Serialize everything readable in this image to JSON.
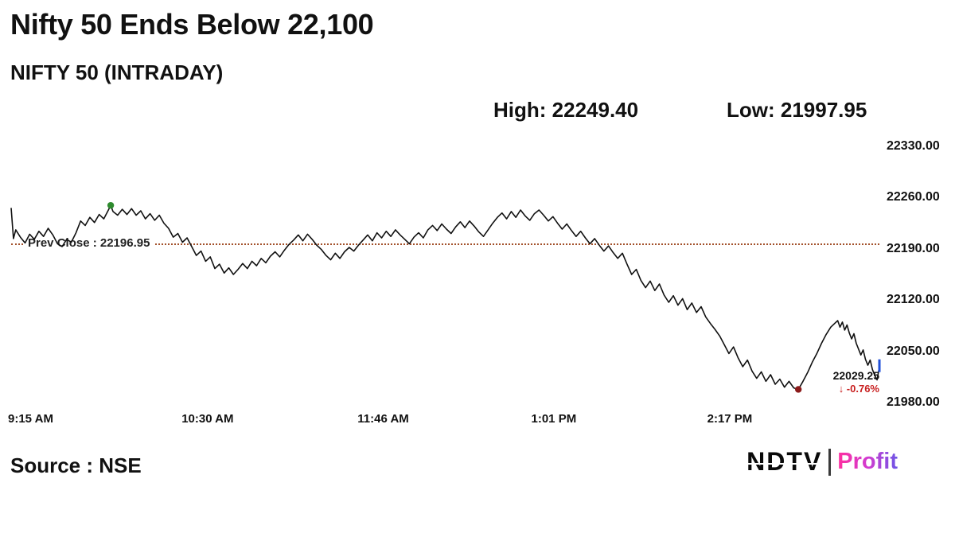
{
  "header": {
    "title": "Nifty 50 Ends Below 22,100",
    "subtitle": "NIFTY 50 (INTRADAY)",
    "high_label": "High: 22249.40",
    "low_label": "Low: 21997.95"
  },
  "footer": {
    "source": "Source : NSE",
    "logo": {
      "ndtv": "NDTV",
      "divider": "|",
      "profit": "Profit"
    }
  },
  "colors": {
    "line": "#111111",
    "prev_close": "#a3512b",
    "green": "#2e8b2e",
    "dark_red": "#8b1a1a",
    "blue": "#1f4fd8",
    "change_red": "#c81e1e",
    "profit_gradient": [
      "#ff2f9e",
      "#d23bd0",
      "#6d55e6"
    ]
  },
  "chart_data": {
    "type": "line",
    "title": "NIFTY 50 (INTRADAY)",
    "xlabel": "",
    "ylabel": "",
    "grid": false,
    "high": 22249.4,
    "low": 21997.95,
    "prev_close": {
      "label": "Prev Close : 22196.95",
      "value": 22196.95
    },
    "last": {
      "value": 22029.25,
      "label": "22029.25",
      "change_label": "↓ -0.76%",
      "change_pct": -0.76
    },
    "x_axis": {
      "labels": [
        "9:15 AM",
        "10:30 AM",
        "11:46 AM",
        "1:01 PM",
        "2:17 PM"
      ],
      "tick_minutes": [
        0,
        75,
        151,
        226,
        302
      ],
      "range_minutes": [
        0,
        375
      ]
    },
    "y_axis": {
      "labels": [
        "22330.00",
        "22260.00",
        "22190.00",
        "22120.00",
        "22050.00",
        "21980.00"
      ],
      "ticks": [
        22330,
        22260,
        22190,
        22120,
        22050,
        21980
      ],
      "range": [
        21980,
        22330
      ]
    },
    "markers": [
      {
        "type": "dot",
        "color_key": "green",
        "minute": 43,
        "value": 22249.4,
        "name": "day-high-marker"
      },
      {
        "type": "dot",
        "color_key": "dark_red",
        "minute": 340,
        "value": 21997.95,
        "name": "day-low-marker"
      },
      {
        "type": "tick",
        "color_key": "blue",
        "minute": 375,
        "value": 22029.25,
        "name": "last-price-marker"
      }
    ],
    "series": [
      {
        "name": "NIFTY 50",
        "points": [
          [
            0,
            22246
          ],
          [
            1,
            22204
          ],
          [
            2,
            22216
          ],
          [
            4,
            22206
          ],
          [
            6,
            22198
          ],
          [
            8,
            22210
          ],
          [
            10,
            22203
          ],
          [
            12,
            22214
          ],
          [
            14,
            22207
          ],
          [
            16,
            22218
          ],
          [
            18,
            22209
          ],
          [
            20,
            22197
          ],
          [
            22,
            22193
          ],
          [
            24,
            22203
          ],
          [
            26,
            22199
          ],
          [
            28,
            22212
          ],
          [
            30,
            22228
          ],
          [
            32,
            22222
          ],
          [
            34,
            22233
          ],
          [
            36,
            22226
          ],
          [
            38,
            22237
          ],
          [
            40,
            22231
          ],
          [
            42,
            22243
          ],
          [
            43,
            22249.4
          ],
          [
            44,
            22241
          ],
          [
            46,
            22236
          ],
          [
            48,
            22244
          ],
          [
            50,
            22237
          ],
          [
            52,
            22245
          ],
          [
            54,
            22236
          ],
          [
            56,
            22242
          ],
          [
            58,
            22231
          ],
          [
            60,
            22238
          ],
          [
            62,
            22229
          ],
          [
            64,
            22236
          ],
          [
            66,
            22225
          ],
          [
            68,
            22218
          ],
          [
            70,
            22206
          ],
          [
            72,
            22211
          ],
          [
            74,
            22199
          ],
          [
            76,
            22205
          ],
          [
            78,
            22193
          ],
          [
            80,
            22181
          ],
          [
            82,
            22187
          ],
          [
            84,
            22173
          ],
          [
            86,
            22179
          ],
          [
            88,
            22163
          ],
          [
            90,
            22169
          ],
          [
            92,
            22157
          ],
          [
            94,
            22164
          ],
          [
            96,
            22155
          ],
          [
            98,
            22162
          ],
          [
            100,
            22170
          ],
          [
            102,
            22163
          ],
          [
            104,
            22173
          ],
          [
            106,
            22167
          ],
          [
            108,
            22177
          ],
          [
            110,
            22171
          ],
          [
            112,
            22180
          ],
          [
            114,
            22186
          ],
          [
            116,
            22179
          ],
          [
            118,
            22188
          ],
          [
            120,
            22196
          ],
          [
            122,
            22202
          ],
          [
            124,
            22209
          ],
          [
            126,
            22201
          ],
          [
            128,
            22210
          ],
          [
            130,
            22203
          ],
          [
            132,
            22195
          ],
          [
            134,
            22189
          ],
          [
            136,
            22181
          ],
          [
            138,
            22175
          ],
          [
            140,
            22184
          ],
          [
            142,
            22177
          ],
          [
            144,
            22186
          ],
          [
            146,
            22192
          ],
          [
            148,
            22187
          ],
          [
            150,
            22195
          ],
          [
            152,
            22202
          ],
          [
            154,
            22209
          ],
          [
            156,
            22201
          ],
          [
            158,
            22212
          ],
          [
            160,
            22205
          ],
          [
            162,
            22214
          ],
          [
            164,
            22207
          ],
          [
            166,
            22216
          ],
          [
            168,
            22209
          ],
          [
            170,
            22203
          ],
          [
            172,
            22197
          ],
          [
            174,
            22206
          ],
          [
            176,
            22212
          ],
          [
            178,
            22205
          ],
          [
            180,
            22216
          ],
          [
            182,
            22222
          ],
          [
            184,
            22215
          ],
          [
            186,
            22224
          ],
          [
            188,
            22217
          ],
          [
            190,
            22211
          ],
          [
            192,
            22220
          ],
          [
            194,
            22227
          ],
          [
            196,
            22219
          ],
          [
            198,
            22228
          ],
          [
            200,
            22221
          ],
          [
            202,
            22213
          ],
          [
            204,
            22207
          ],
          [
            206,
            22216
          ],
          [
            208,
            22225
          ],
          [
            210,
            22233
          ],
          [
            212,
            22239
          ],
          [
            214,
            22231
          ],
          [
            216,
            22241
          ],
          [
            218,
            22233
          ],
          [
            220,
            22243
          ],
          [
            222,
            22235
          ],
          [
            224,
            22229
          ],
          [
            226,
            22238
          ],
          [
            228,
            22243
          ],
          [
            230,
            22236
          ],
          [
            232,
            22228
          ],
          [
            234,
            22234
          ],
          [
            236,
            22225
          ],
          [
            238,
            22217
          ],
          [
            240,
            22224
          ],
          [
            242,
            22215
          ],
          [
            244,
            22207
          ],
          [
            246,
            22214
          ],
          [
            248,
            22205
          ],
          [
            250,
            22197
          ],
          [
            252,
            22204
          ],
          [
            254,
            22195
          ],
          [
            256,
            22187
          ],
          [
            258,
            22194
          ],
          [
            260,
            22185
          ],
          [
            262,
            22177
          ],
          [
            264,
            22184
          ],
          [
            266,
            22169
          ],
          [
            268,
            22155
          ],
          [
            270,
            22162
          ],
          [
            272,
            22147
          ],
          [
            274,
            22137
          ],
          [
            276,
            22146
          ],
          [
            278,
            22133
          ],
          [
            280,
            22142
          ],
          [
            282,
            22127
          ],
          [
            284,
            22117
          ],
          [
            286,
            22126
          ],
          [
            288,
            22113
          ],
          [
            290,
            22122
          ],
          [
            292,
            22107
          ],
          [
            294,
            22116
          ],
          [
            296,
            22103
          ],
          [
            298,
            22111
          ],
          [
            300,
            22097
          ],
          [
            302,
            22088
          ],
          [
            304,
            22080
          ],
          [
            306,
            22071
          ],
          [
            308,
            22059
          ],
          [
            310,
            22047
          ],
          [
            312,
            22056
          ],
          [
            314,
            22041
          ],
          [
            316,
            22029
          ],
          [
            318,
            22038
          ],
          [
            320,
            22023
          ],
          [
            322,
            22013
          ],
          [
            324,
            22022
          ],
          [
            326,
            22009
          ],
          [
            328,
            22018
          ],
          [
            330,
            22005
          ],
          [
            332,
            22012
          ],
          [
            334,
            22001
          ],
          [
            336,
            22009
          ],
          [
            338,
            22000
          ],
          [
            340,
            21997.95
          ],
          [
            342,
            22009
          ],
          [
            344,
            22021
          ],
          [
            346,
            22035
          ],
          [
            348,
            22047
          ],
          [
            350,
            22061
          ],
          [
            352,
            22073
          ],
          [
            354,
            22083
          ],
          [
            356,
            22089
          ],
          [
            357,
            22092
          ],
          [
            358,
            22083
          ],
          [
            359,
            22090
          ],
          [
            360,
            22079
          ],
          [
            361,
            22086
          ],
          [
            362,
            22075
          ],
          [
            363,
            22067
          ],
          [
            364,
            22074
          ],
          [
            365,
            22061
          ],
          [
            366,
            22053
          ],
          [
            367,
            22045
          ],
          [
            368,
            22052
          ],
          [
            369,
            22039
          ],
          [
            370,
            22031
          ],
          [
            371,
            22038
          ],
          [
            372,
            22025
          ],
          [
            373,
            22017
          ],
          [
            374,
            22011
          ],
          [
            375,
            22029.25
          ]
        ]
      }
    ]
  }
}
